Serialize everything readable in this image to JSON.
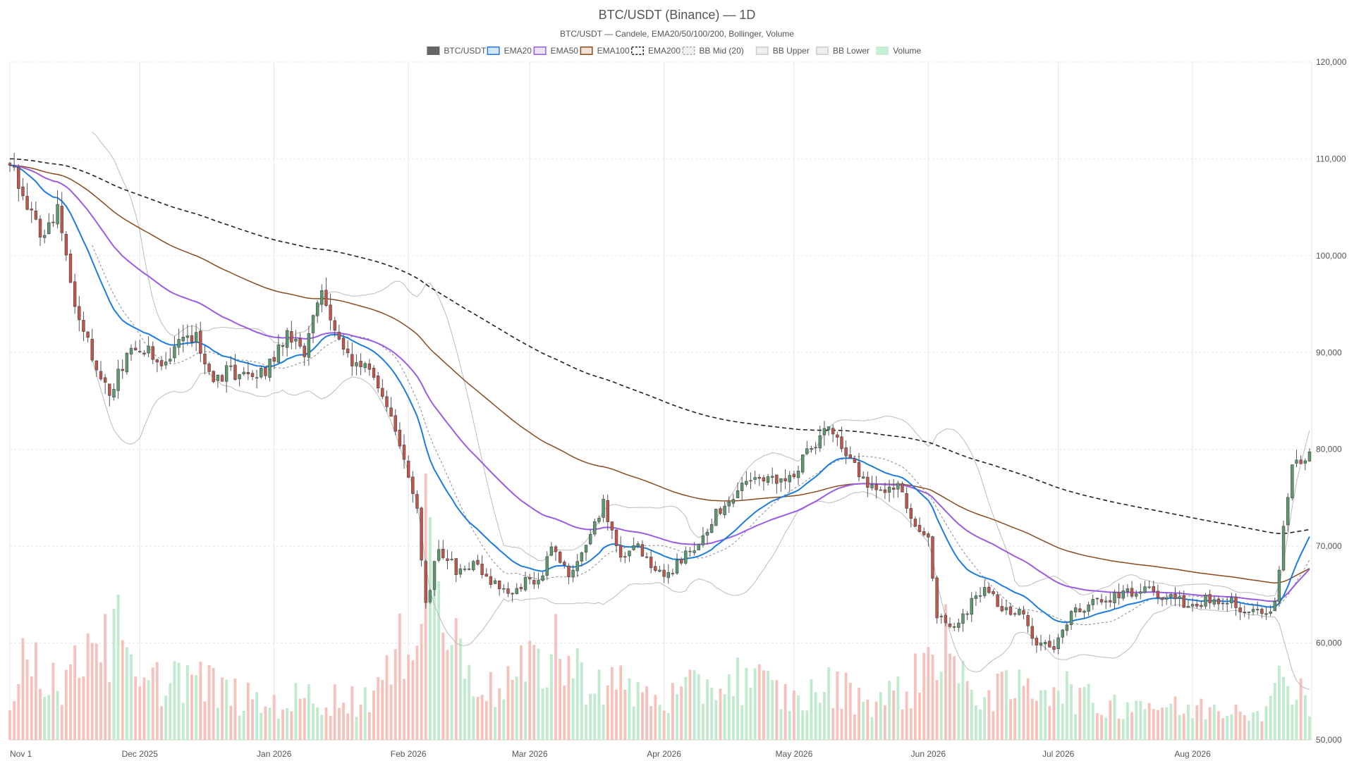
{
  "chart_data": {
    "type": "candlestick",
    "title": "BTC/USDT (Binance) — 1D",
    "subtitle": "BTC/USDT — Candele, EMA20/50/100/200, Bollinger, Volume",
    "start_date": "2025-11-01",
    "end_date": "2026-08-28",
    "x_tick_labels": [
      "Nov 1",
      "Dec 2025",
      "Jan 2026",
      "Feb 2026",
      "Mar 2026",
      "Apr 2026",
      "May 2026",
      "Jun 2026",
      "Jul 2026",
      "Aug 2026"
    ],
    "x_tick_dates": [
      "2025-11-01",
      "2025-12-01",
      "2026-01-01",
      "2026-02-01",
      "2026-03-01",
      "2026-04-01",
      "2026-05-01",
      "2026-06-01",
      "2026-07-01",
      "2026-08-01"
    ],
    "y_ticks": [
      50000,
      60000,
      70000,
      80000,
      90000,
      100000,
      110000,
      120000
    ],
    "y_tick_labels": [
      "50,000",
      "60,000",
      "70,000",
      "80,000",
      "90,000",
      "100,000",
      "110,000",
      "120,000"
    ],
    "ylim": [
      50000,
      120000
    ],
    "grid": true,
    "legend_position": "top-center",
    "close_anchors": [
      [
        "2025-11-01",
        110000
      ],
      [
        "2025-11-04",
        106000
      ],
      [
        "2025-11-08",
        102000
      ],
      [
        "2025-11-12",
        105000
      ],
      [
        "2025-11-16",
        95000
      ],
      [
        "2025-11-20",
        90000
      ],
      [
        "2025-11-24",
        85500
      ],
      [
        "2025-11-28",
        90000
      ],
      [
        "2025-12-02",
        90500
      ],
      [
        "2025-12-06",
        88500
      ],
      [
        "2025-12-10",
        91000
      ],
      [
        "2025-12-14",
        91500
      ],
      [
        "2025-12-18",
        87500
      ],
      [
        "2025-12-22",
        88000
      ],
      [
        "2025-12-26",
        87500
      ],
      [
        "2025-12-30",
        88000
      ],
      [
        "2026-01-04",
        92000
      ],
      [
        "2026-01-08",
        90000
      ],
      [
        "2026-01-12",
        96000
      ],
      [
        "2026-01-16",
        92000
      ],
      [
        "2026-01-20",
        88500
      ],
      [
        "2026-01-24",
        88000
      ],
      [
        "2026-01-28",
        83000
      ],
      [
        "2026-01-31",
        78500
      ],
      [
        "2026-02-03",
        74000
      ],
      [
        "2026-02-05",
        64000
      ],
      [
        "2026-02-08",
        70000
      ],
      [
        "2026-02-12",
        67500
      ],
      [
        "2026-02-16",
        68500
      ],
      [
        "2026-02-20",
        66500
      ],
      [
        "2026-02-24",
        65000
      ],
      [
        "2026-02-28",
        66500
      ],
      [
        "2026-03-03",
        66000
      ],
      [
        "2026-03-06",
        70500
      ],
      [
        "2026-03-10",
        67000
      ],
      [
        "2026-03-14",
        69500
      ],
      [
        "2026-03-18",
        74500
      ],
      [
        "2026-03-22",
        69000
      ],
      [
        "2026-03-26",
        70000
      ],
      [
        "2026-03-30",
        67000
      ],
      [
        "2026-04-03",
        67500
      ],
      [
        "2026-04-07",
        69500
      ],
      [
        "2026-04-11",
        72000
      ],
      [
        "2026-04-15",
        74500
      ],
      [
        "2026-04-19",
        76000
      ],
      [
        "2026-04-23",
        77000
      ],
      [
        "2026-04-27",
        76500
      ],
      [
        "2026-05-01",
        77000
      ],
      [
        "2026-05-05",
        80500
      ],
      [
        "2026-05-09",
        82000
      ],
      [
        "2026-05-13",
        79500
      ],
      [
        "2026-05-17",
        76500
      ],
      [
        "2026-05-21",
        76000
      ],
      [
        "2026-05-25",
        76500
      ],
      [
        "2026-05-29",
        72500
      ],
      [
        "2026-06-01",
        70500
      ],
      [
        "2026-06-03",
        63000
      ],
      [
        "2026-06-06",
        61500
      ],
      [
        "2026-06-10",
        63500
      ],
      [
        "2026-06-14",
        66000
      ],
      [
        "2026-06-18",
        63500
      ],
      [
        "2026-06-22",
        63500
      ],
      [
        "2026-06-26",
        60000
      ],
      [
        "2026-06-30",
        59500
      ],
      [
        "2026-07-04",
        63000
      ],
      [
        "2026-07-08",
        64000
      ],
      [
        "2026-07-12",
        64500
      ],
      [
        "2026-07-16",
        65000
      ],
      [
        "2026-07-20",
        65500
      ],
      [
        "2026-07-24",
        65000
      ],
      [
        "2026-07-28",
        64500
      ],
      [
        "2026-08-01",
        64000
      ],
      [
        "2026-08-05",
        64500
      ],
      [
        "2026-08-09",
        64500
      ],
      [
        "2026-08-13",
        63500
      ],
      [
        "2026-08-17",
        63000
      ],
      [
        "2026-08-20",
        64000
      ],
      [
        "2026-08-22",
        72000
      ],
      [
        "2026-08-24",
        78000
      ],
      [
        "2026-08-26",
        78500
      ],
      [
        "2026-08-28",
        80000
      ]
    ],
    "volume_anchors": [
      [
        "2025-11-01",
        5000
      ],
      [
        "2025-11-05",
        20000
      ],
      [
        "2025-11-10",
        13000
      ],
      [
        "2025-11-15",
        12000
      ],
      [
        "2025-11-20",
        21000
      ],
      [
        "2025-11-25",
        19000
      ],
      [
        "2025-12-01",
        10000
      ],
      [
        "2025-12-10",
        14000
      ],
      [
        "2025-12-20",
        10000
      ],
      [
        "2025-12-30",
        7000
      ],
      [
        "2026-01-10",
        9000
      ],
      [
        "2026-01-20",
        8000
      ],
      [
        "2026-01-28",
        13000
      ],
      [
        "2026-02-03",
        28000
      ],
      [
        "2026-02-06",
        33000
      ],
      [
        "2026-02-12",
        19000
      ],
      [
        "2026-02-20",
        10000
      ],
      [
        "2026-02-28",
        14000
      ],
      [
        "2026-03-06",
        17000
      ],
      [
        "2026-03-14",
        13000
      ],
      [
        "2026-03-22",
        11000
      ],
      [
        "2026-04-01",
        8000
      ],
      [
        "2026-04-10",
        11000
      ],
      [
        "2026-04-20",
        13000
      ],
      [
        "2026-05-01",
        8000
      ],
      [
        "2026-05-10",
        11000
      ],
      [
        "2026-05-20",
        8000
      ],
      [
        "2026-05-28",
        11000
      ],
      [
        "2026-06-03",
        20000
      ],
      [
        "2026-06-10",
        10000
      ],
      [
        "2026-06-20",
        10000
      ],
      [
        "2026-06-30",
        12000
      ],
      [
        "2026-07-10",
        7000
      ],
      [
        "2026-07-20",
        8000
      ],
      [
        "2026-07-30",
        6000
      ],
      [
        "2026-08-10",
        7000
      ],
      [
        "2026-08-19",
        7000
      ],
      [
        "2026-08-22",
        14000
      ],
      [
        "2026-08-25",
        12000
      ],
      [
        "2026-08-28",
        8000
      ]
    ],
    "volume_spikes": [
      [
        "2025-11-04",
        21000
      ],
      [
        "2025-11-19",
        22000
      ],
      [
        "2025-11-23",
        26000
      ],
      [
        "2025-11-26",
        30000
      ],
      [
        "2026-02-05",
        55000
      ],
      [
        "2026-02-06",
        46000
      ],
      [
        "2026-06-05",
        28000
      ],
      [
        "2026-03-07",
        26000
      ]
    ],
    "volume_ylim": [
      0,
      140000
    ],
    "colors": {
      "up": "#5a9a6e",
      "down": "#c0564a",
      "wick": "#555555",
      "ema20": "#1a7ce0",
      "ema50": "#9a5ce6",
      "ema100": "#8b4a1e",
      "ema200": "#222222",
      "bb_mid": "#888888",
      "bb_band": "#bbbbbb",
      "vol_up": "#bfeacd",
      "vol_down": "#f6c1bb"
    },
    "legend": [
      {
        "label": "BTC/USDT",
        "swatch": "solid",
        "color": "#666666"
      },
      {
        "label": "EMA20",
        "swatch": "box",
        "color": "#1a7ce0",
        "fill": "#d5e6f6"
      },
      {
        "label": "EMA50",
        "swatch": "box",
        "color": "#9a5ce6",
        "fill": "#ece3f8"
      },
      {
        "label": "EMA100",
        "swatch": "box",
        "color": "#8b4a1e",
        "fill": "#efe2d9"
      },
      {
        "label": "EMA200",
        "swatch": "dashed",
        "color": "#222222",
        "fill": "#ffffff"
      },
      {
        "label": "BB Mid (20)",
        "swatch": "dashed",
        "color": "#aaaaaa",
        "fill": "#f0f0f0"
      },
      {
        "label": "BB Upper",
        "swatch": "box",
        "color": "#cccccc",
        "fill": "#eeeeee"
      },
      {
        "label": "BB Lower",
        "swatch": "box",
        "color": "#cccccc",
        "fill": "#eeeeee"
      },
      {
        "label": "Volume",
        "swatch": "solid",
        "color": "#c9eed6"
      }
    ]
  }
}
